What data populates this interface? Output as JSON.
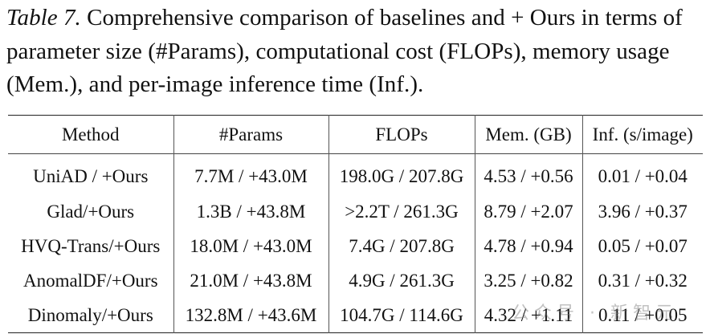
{
  "caption": {
    "label": "Table 7.",
    "text": " Comprehensive comparison of baselines and + Ours in terms of parameter size (#Params), computational cost (FLOPs), memory usage (Mem.), and per-image inference time (Inf.)."
  },
  "table": {
    "headers": [
      "Method",
      "#Params",
      "FLOPs",
      "Mem. (GB)",
      "Inf. (s/image)"
    ],
    "rows": [
      [
        "UniAD / +Ours",
        "7.7M / +43.0M",
        "198.0G / 207.8G",
        "4.53 / +0.56",
        "0.01 / +0.04"
      ],
      [
        "Glad/+Ours",
        "1.3B / +43.8M",
        ">2.2T / 261.3G",
        "8.79 / +2.07",
        "3.96 / +0.37"
      ],
      [
        "HVQ-Trans/+Ours",
        "18.0M / +43.0M",
        "7.4G / 207.8G",
        "4.78 / +0.94",
        "0.05 / +0.07"
      ],
      [
        "AnomalDF/+Ours",
        "21.0M / +43.8M",
        "4.9G / 261.3G",
        "3.25 / +0.82",
        "0.31 / +0.32"
      ],
      [
        "Dinomaly/+Ours",
        "132.8M / +43.6M",
        "104.7G / 114.6G",
        "4.32 / +1.11",
        "0.11 / +0.05"
      ]
    ]
  },
  "watermark": "公众号 · 新智元"
}
